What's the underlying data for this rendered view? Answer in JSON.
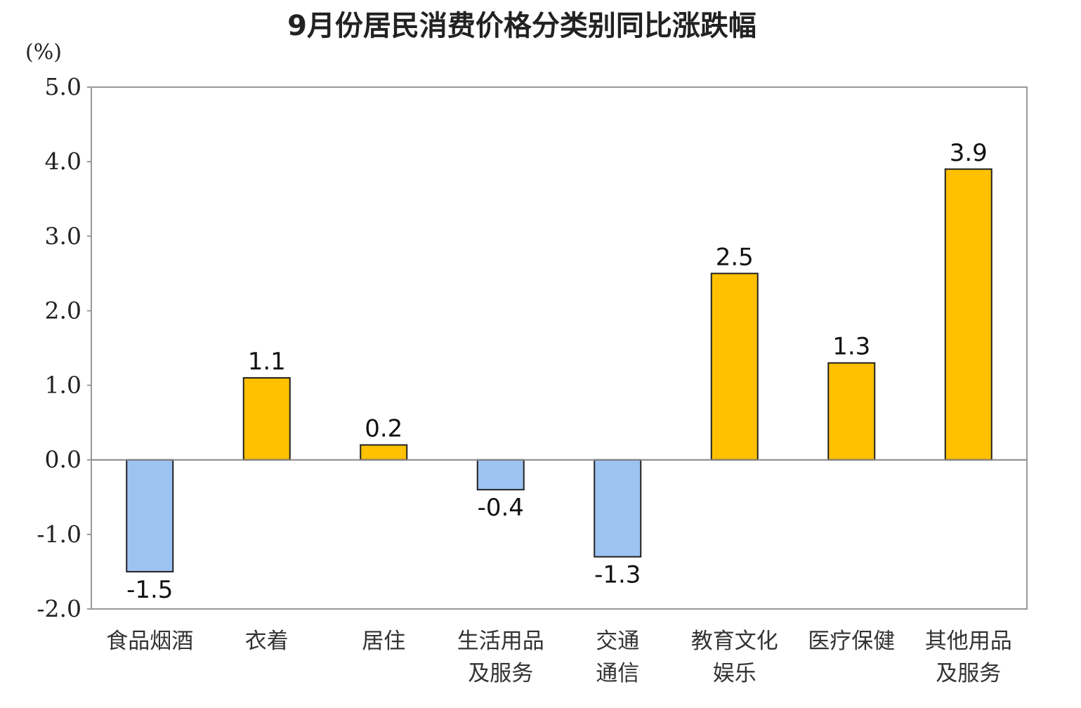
{
  "chart_data": {
    "type": "bar",
    "title": "9月份居民消费价格分类别同比涨跌幅",
    "unit_label": "(%)",
    "xlabel": "",
    "ylabel": "",
    "ylim": [
      -2.0,
      5.0
    ],
    "y_ticks": [
      "5.0",
      "4.0",
      "3.0",
      "2.0",
      "1.0",
      "0.0",
      "-1.0",
      "-2.0"
    ],
    "y_tick_values": [
      5,
      4,
      3,
      2,
      1,
      0,
      -1,
      -2
    ],
    "categories": [
      [
        "食品烟酒"
      ],
      [
        "衣着"
      ],
      [
        "居住"
      ],
      [
        "生活用品",
        "及服务"
      ],
      [
        "交通",
        "通信"
      ],
      [
        "教育文化",
        "娱乐"
      ],
      [
        "医疗保健"
      ],
      [
        "其他用品",
        "及服务"
      ]
    ],
    "values": [
      -1.5,
      1.1,
      0.2,
      -0.4,
      -1.3,
      2.5,
      1.3,
      3.9
    ],
    "data_labels": [
      "-1.5",
      "1.1",
      "0.2",
      "-0.4",
      "-1.3",
      "2.5",
      "1.3",
      "3.9"
    ],
    "legend": "none",
    "grid": false,
    "colors": {
      "positive": "#FFC000",
      "negative": "#9DC3F2",
      "bar_stroke": "#222222",
      "frame": "#999999",
      "zero_line": "#888888"
    }
  }
}
